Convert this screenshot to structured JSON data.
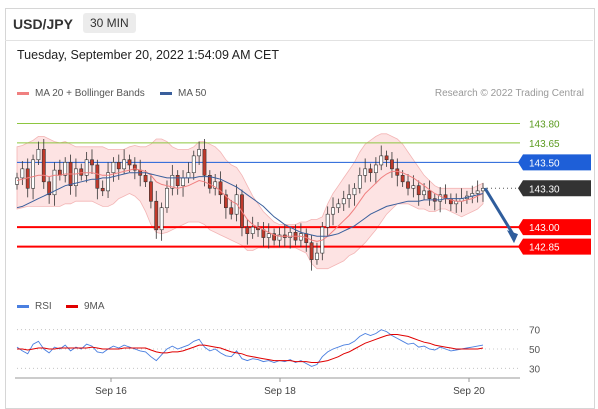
{
  "header": {
    "pair": "USD/JPY",
    "interval": "30 MIN"
  },
  "timestamp": "Tuesday, September 20, 2022 1:54:09 AM CET",
  "legend": {
    "ma20_bb": "MA 20 + Bollinger Bands",
    "ma50": "MA 50",
    "rsi": "RSI",
    "ma9": "9MA",
    "credit": "Research © 2022 Trading Central"
  },
  "colors": {
    "ma20": "#f08080",
    "bollinger_fill": "#fde3e3",
    "ma50": "#3a5f9c",
    "resistance": "#8dc63f",
    "pivot": "#1e5fd8",
    "support": "#ff0000",
    "current": "#333333",
    "arrow": "#2f5d9c",
    "rsi": "#4a7fe0",
    "rsi_ma9": "#e00000",
    "bull": "#ffffff",
    "bear": "#c0392b"
  },
  "chart_data": [
    {
      "type": "candlestick",
      "title": "USD/JPY 30 MIN",
      "x_ticks": [
        "Sep 16",
        "Sep 18",
        "Sep 20"
      ],
      "y_range": [
        142.5,
        143.95
      ],
      "levels": [
        {
          "value": "143.80",
          "kind": "resistance"
        },
        {
          "value": "143.65",
          "kind": "resistance"
        },
        {
          "value": "143.50",
          "kind": "pivot"
        },
        {
          "value": "143.30",
          "kind": "current"
        },
        {
          "value": "143.00",
          "kind": "support"
        },
        {
          "value": "142.85",
          "kind": "support"
        }
      ],
      "close_series": [
        143.38,
        143.45,
        143.3,
        143.52,
        143.6,
        143.35,
        143.25,
        143.44,
        143.4,
        143.5,
        143.32,
        143.45,
        143.4,
        143.52,
        143.48,
        143.3,
        143.28,
        143.42,
        143.5,
        143.45,
        143.52,
        143.48,
        143.44,
        143.4,
        143.35,
        143.2,
        142.98,
        143.15,
        143.3,
        143.4,
        143.32,
        143.38,
        143.42,
        143.55,
        143.6,
        143.4,
        143.3,
        143.35,
        143.25,
        143.15,
        143.1,
        143.25,
        143.0,
        142.95,
        143.0,
        142.98,
        142.92,
        142.95,
        142.9,
        142.94,
        142.92,
        142.96,
        142.9,
        142.95,
        142.88,
        142.75,
        142.8,
        143.0,
        143.1,
        143.15,
        143.18,
        143.22,
        143.25,
        143.3,
        143.4,
        143.45,
        143.42,
        143.48,
        143.55,
        143.52,
        143.45,
        143.4,
        143.35,
        143.3,
        143.32,
        143.25,
        143.28,
        143.22,
        143.2,
        143.25,
        143.22,
        143.18,
        143.2,
        143.22,
        143.24,
        143.26,
        143.28,
        143.3
      ],
      "ma20": [
        143.36,
        143.37,
        143.38,
        143.39,
        143.4,
        143.4,
        143.39,
        143.4,
        143.4,
        143.41,
        143.41,
        143.41,
        143.42,
        143.42,
        143.42,
        143.41,
        143.4,
        143.4,
        143.41,
        143.42,
        143.43,
        143.44,
        143.45,
        143.44,
        143.43,
        143.4,
        143.35,
        143.33,
        143.32,
        143.31,
        143.3,
        143.31,
        143.32,
        143.34,
        143.36,
        143.35,
        143.33,
        143.31,
        143.28,
        143.24,
        143.2,
        143.18,
        143.12,
        143.06,
        143.02,
        143.0,
        142.98,
        142.96,
        142.94,
        142.93,
        142.93,
        142.93,
        142.93,
        142.93,
        142.92,
        142.9,
        142.89,
        142.9,
        142.93,
        142.97,
        143.01,
        143.05,
        143.09,
        143.14,
        143.2,
        143.26,
        143.3,
        143.34,
        143.38,
        143.41,
        143.43,
        143.43,
        143.42,
        143.4,
        143.38,
        143.35,
        143.32,
        143.29,
        143.26,
        143.24,
        143.22,
        143.21,
        143.2,
        143.2,
        143.21,
        143.22,
        143.24,
        143.26
      ],
      "bollinger_upper": [
        143.62,
        143.63,
        143.65,
        143.67,
        143.7,
        143.7,
        143.68,
        143.66,
        143.65,
        143.66,
        143.64,
        143.62,
        143.62,
        143.62,
        143.62,
        143.62,
        143.62,
        143.6,
        143.6,
        143.6,
        143.6,
        143.62,
        143.63,
        143.62,
        143.62,
        143.64,
        143.68,
        143.68,
        143.66,
        143.62,
        143.6,
        143.6,
        143.6,
        143.62,
        143.66,
        143.66,
        143.64,
        143.62,
        143.58,
        143.52,
        143.48,
        143.46,
        143.4,
        143.32,
        143.24,
        143.18,
        143.12,
        143.08,
        143.04,
        143.02,
        143.02,
        143.02,
        143.02,
        143.04,
        143.04,
        143.06,
        143.06,
        143.08,
        143.18,
        143.26,
        143.32,
        143.38,
        143.44,
        143.5,
        143.58,
        143.64,
        143.67,
        143.7,
        143.72,
        143.72,
        143.7,
        143.68,
        143.64,
        143.58,
        143.52,
        143.46,
        143.4,
        143.36,
        143.32,
        143.3,
        143.3,
        143.3,
        143.3,
        143.3,
        143.3,
        143.3,
        143.32,
        143.34
      ],
      "bollinger_lower": [
        143.14,
        143.15,
        143.16,
        143.16,
        143.16,
        143.16,
        143.16,
        143.16,
        143.16,
        143.18,
        143.18,
        143.2,
        143.2,
        143.2,
        143.2,
        143.18,
        143.16,
        143.16,
        143.18,
        143.22,
        143.24,
        143.26,
        143.24,
        143.2,
        143.12,
        143.02,
        142.96,
        142.95,
        142.96,
        142.98,
        143.0,
        143.02,
        143.04,
        143.04,
        143.04,
        143.02,
        142.98,
        142.96,
        142.94,
        142.92,
        142.9,
        142.88,
        142.86,
        142.82,
        142.82,
        142.84,
        142.84,
        142.84,
        142.84,
        142.84,
        142.84,
        142.84,
        142.84,
        142.82,
        142.8,
        142.72,
        142.68,
        142.68,
        142.68,
        142.7,
        142.72,
        142.74,
        142.78,
        142.8,
        142.84,
        142.88,
        142.93,
        142.98,
        143.04,
        143.1,
        143.14,
        143.18,
        143.18,
        143.18,
        143.16,
        143.14,
        143.14,
        143.12,
        143.12,
        143.14,
        143.14,
        143.12,
        143.1,
        143.08,
        143.1,
        143.12,
        143.14,
        143.18
      ],
      "ma50": [
        143.15,
        143.16,
        143.18,
        143.2,
        143.22,
        143.24,
        143.26,
        143.28,
        143.3,
        143.32,
        143.33,
        143.34,
        143.35,
        143.36,
        143.37,
        143.37,
        143.38,
        143.38,
        143.39,
        143.4,
        143.41,
        143.42,
        143.42,
        143.42,
        143.42,
        143.41,
        143.4,
        143.39,
        143.38,
        143.38,
        143.38,
        143.38,
        143.38,
        143.38,
        143.39,
        143.39,
        143.39,
        143.38,
        143.37,
        143.35,
        143.33,
        143.31,
        143.28,
        143.25,
        143.22,
        143.19,
        143.16,
        143.12,
        143.08,
        143.05,
        143.02,
        143.0,
        142.98,
        142.96,
        142.95,
        142.94,
        142.93,
        142.93,
        142.93,
        142.94,
        142.95,
        142.97,
        142.99,
        143.01,
        143.04,
        143.07,
        143.1,
        143.12,
        143.14,
        143.16,
        143.17,
        143.18,
        143.19,
        143.2,
        143.2,
        143.2,
        143.21,
        143.21,
        143.21,
        143.21,
        143.22,
        143.22,
        143.22,
        143.22,
        143.23,
        143.24,
        143.25,
        143.26
      ],
      "forecast_arrow": {
        "from": 143.3,
        "to": 142.9
      }
    },
    {
      "type": "line",
      "title": "RSI",
      "y_ticks": [
        "70",
        "50",
        "30"
      ],
      "y_range": [
        20,
        80
      ],
      "series": [
        {
          "name": "RSI",
          "values": [
            52,
            48,
            45,
            55,
            58,
            50,
            46,
            52,
            50,
            54,
            48,
            52,
            50,
            55,
            53,
            47,
            46,
            50,
            53,
            51,
            54,
            52,
            50,
            48,
            47,
            42,
            38,
            44,
            50,
            53,
            50,
            52,
            54,
            58,
            60,
            52,
            48,
            50,
            46,
            43,
            42,
            48,
            40,
            38,
            40,
            39,
            37,
            38,
            36,
            38,
            37,
            39,
            36,
            38,
            35,
            32,
            34,
            42,
            47,
            50,
            52,
            54,
            55,
            58,
            63,
            66,
            64,
            66,
            70,
            68,
            64,
            61,
            58,
            55,
            56,
            52,
            53,
            50,
            49,
            52,
            50,
            48,
            49,
            50,
            51,
            52,
            53,
            54
          ]
        },
        {
          "name": "9MA",
          "values": [
            50,
            50,
            49,
            50,
            51,
            51,
            50,
            50,
            51,
            51,
            51,
            51,
            51,
            51,
            52,
            51,
            50,
            50,
            50,
            50,
            51,
            51,
            51,
            51,
            51,
            49,
            47,
            46,
            46,
            47,
            47,
            48,
            50,
            52,
            54,
            54,
            53,
            52,
            51,
            49,
            47,
            46,
            45,
            43,
            42,
            41,
            40,
            39,
            38,
            38,
            38,
            38,
            37,
            37,
            37,
            36,
            36,
            37,
            38,
            40,
            42,
            45,
            47,
            50,
            53,
            56,
            58,
            60,
            62,
            64,
            65,
            65,
            64,
            63,
            61,
            59,
            57,
            56,
            54,
            53,
            52,
            51,
            50,
            50,
            50,
            50,
            50,
            51
          ]
        }
      ]
    }
  ]
}
